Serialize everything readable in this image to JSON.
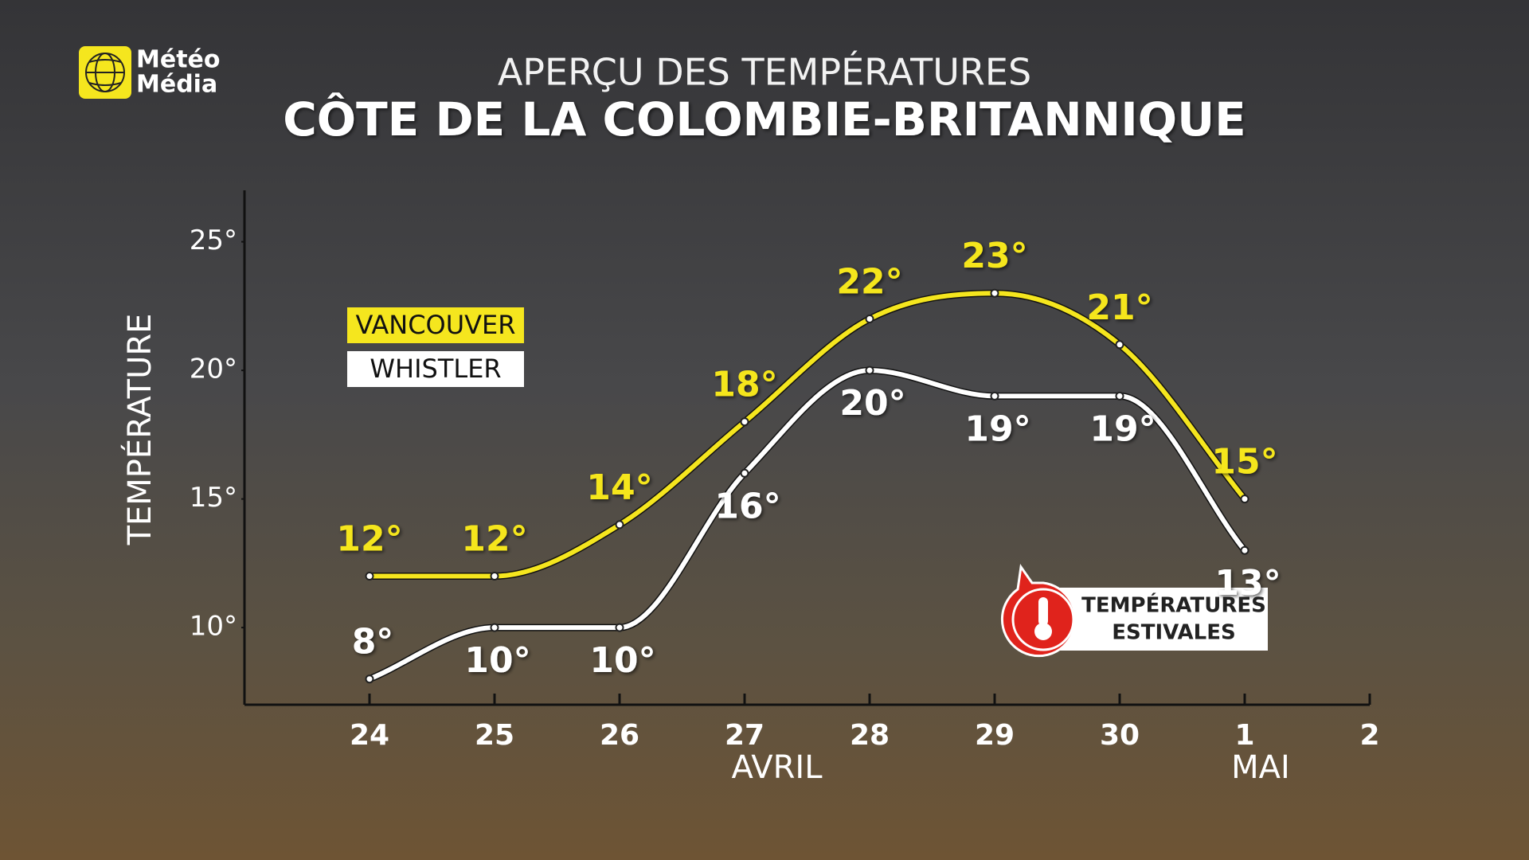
{
  "logo": {
    "line1": "Météo",
    "line2": "Média"
  },
  "badge": {
    "line1": "TEMPÉRATURES",
    "line2": "ESTIVALES"
  },
  "chart_data": {
    "type": "line",
    "title": "APERÇU DES TEMPÉRATURES",
    "subtitle": "CÔTE DE LA COLOMBIE-BRITANNIQUE",
    "y_label": "TEMPÉRATURE",
    "categories": [
      "24",
      "25",
      "26",
      "27",
      "28",
      "29",
      "30",
      "1",
      "2"
    ],
    "month_labels": [
      "AVRIL",
      "MAI"
    ],
    "ylim": [
      7,
      27
    ],
    "yticks": [
      {
        "value": 10,
        "label": "10°"
      },
      {
        "value": 15,
        "label": "15°"
      },
      {
        "value": 20,
        "label": "20°"
      },
      {
        "value": 25,
        "label": "25°"
      }
    ],
    "grid": false,
    "series": [
      {
        "name": "VANCOUVER",
        "color": "#f5e61e",
        "values": [
          12,
          12,
          14,
          18,
          22,
          23,
          21,
          15,
          null
        ],
        "value_labels": [
          "12°",
          "12°",
          "14°",
          "18°",
          "22°",
          "23°",
          "21°",
          "15°",
          null
        ]
      },
      {
        "name": "WHISTLER",
        "color": "#ffffff",
        "values": [
          8,
          10,
          10,
          16,
          20,
          19,
          19,
          13,
          null
        ],
        "value_labels": [
          "8°",
          "10°",
          "10°",
          "16°",
          "20°",
          "19°",
          "19°",
          "13°",
          null
        ]
      }
    ]
  }
}
